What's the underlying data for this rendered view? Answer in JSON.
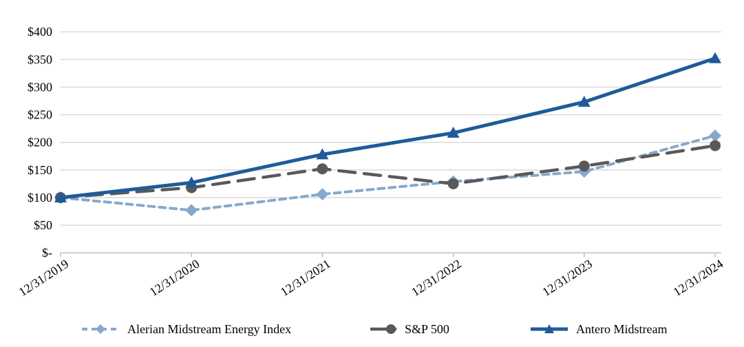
{
  "chart_data": {
    "type": "line",
    "title": "",
    "xlabel": "",
    "ylabel": "",
    "categories": [
      "12/31/2019",
      "12/31/2020",
      "12/31/2021",
      "12/31/2022",
      "12/31/2023",
      "12/31/2024"
    ],
    "series": [
      {
        "name": "Alerian Midstream Energy Index",
        "values": [
          100,
          77,
          106,
          129,
          147,
          212
        ],
        "color": "#85A9CD",
        "marker": "diamond",
        "line_style": "dashed-short"
      },
      {
        "name": "S&P 500",
        "values": [
          100,
          118,
          152,
          125,
          157,
          194
        ],
        "color": "#595959",
        "marker": "circle",
        "line_style": "dashed-long"
      },
      {
        "name": "Antero Midstream",
        "values": [
          100,
          127,
          178,
          217,
          273,
          352
        ],
        "color": "#1F5B99",
        "marker": "triangle",
        "line_style": "solid"
      }
    ],
    "ylim": [
      0,
      400
    ],
    "y_tick_interval": 50,
    "y_tick_labels": [
      "$-",
      "$50",
      "$100",
      "$150",
      "$200",
      "$250",
      "$300",
      "$350",
      "$400"
    ],
    "grid": true,
    "legend_position": "bottom",
    "colors": {
      "gridline": "#D9D9D9",
      "axis_line": "#BFBFBF",
      "text": "#000000"
    }
  }
}
